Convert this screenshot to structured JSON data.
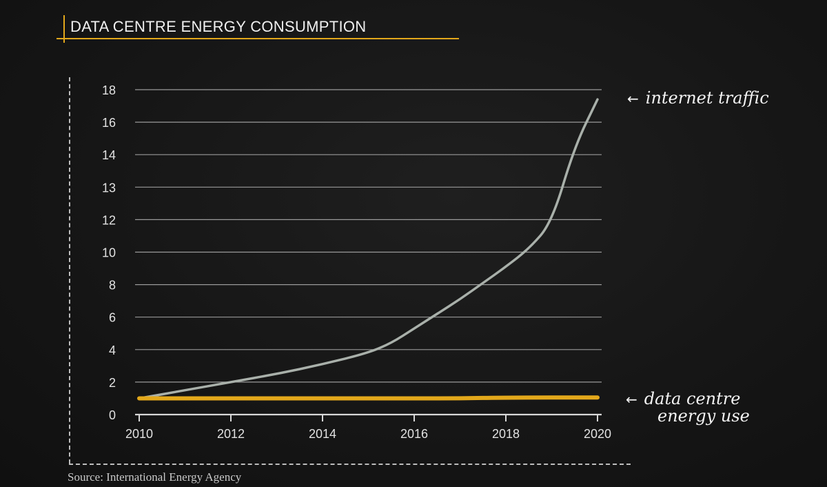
{
  "title": "DATA CENTRE ENERGY CONSUMPTION",
  "source": "Source: International Energy Agency",
  "colors": {
    "accent": "#e3a81b",
    "traffic_line": "#a9b0aa",
    "energy_line": "#e3a81b",
    "grid": "#9a9a9a",
    "text": "#e8e8e8"
  },
  "annotations": {
    "traffic": {
      "arrow": "←",
      "text": "internet traffic"
    },
    "energy": {
      "arrow": "←",
      "line1": "data centre",
      "line2": "energy use"
    }
  },
  "chart_data": {
    "type": "line",
    "title": "DATA CENTRE ENERGY CONSUMPTION",
    "xlabel": "",
    "ylabel": "",
    "x_ticks": [
      "2010",
      "2012",
      "2014",
      "2016",
      "2018",
      "2020"
    ],
    "y_ticks": [
      "0",
      "2",
      "4",
      "6",
      "8",
      "10",
      "12",
      "13",
      "14",
      "16",
      "18"
    ],
    "grid": "horizontal",
    "series": [
      {
        "name": "internet traffic",
        "color": "#a9b0aa",
        "points": [
          [
            2010,
            1
          ],
          [
            2011,
            1.5
          ],
          [
            2012,
            2
          ],
          [
            2013,
            2.5
          ],
          [
            2014,
            3.1
          ],
          [
            2015,
            3.8
          ],
          [
            2015.5,
            4.4
          ],
          [
            2016,
            5.3
          ],
          [
            2016.5,
            6.2
          ],
          [
            2017,
            7.1
          ],
          [
            2017.5,
            8.1
          ],
          [
            2018,
            9.1
          ],
          [
            2018.5,
            10.2
          ],
          [
            2019,
            11.8
          ],
          [
            2019.5,
            14.5
          ],
          [
            2020,
            17.4
          ]
        ]
      },
      {
        "name": "data centre energy use",
        "color": "#e3a81b",
        "points": [
          [
            2010,
            1
          ],
          [
            2014,
            1
          ],
          [
            2016,
            1
          ],
          [
            2017,
            1
          ],
          [
            2018,
            1.05
          ],
          [
            2020,
            1.05
          ]
        ]
      }
    ]
  }
}
